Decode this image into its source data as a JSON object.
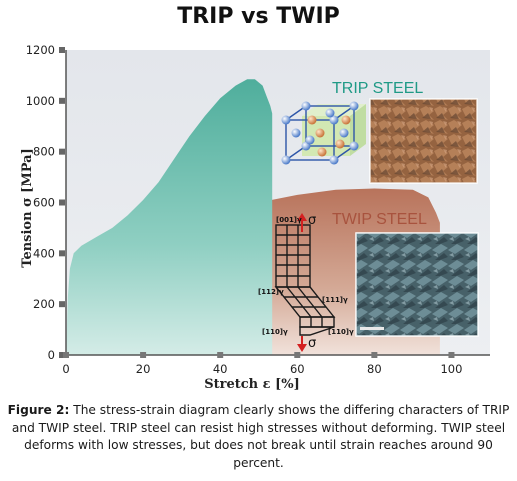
{
  "page": {
    "title": "TRIP vs TWIP",
    "caption": {
      "label": "Figure 2:",
      "text": " The stress-strain diagram clearly shows the differing characters of TRIP and TWIP steel. TRIP steel can resist high stresses without deforming. TWIP steel deforms with low stresses, but does not break until strain reaches around 90 percent."
    }
  },
  "chart_data": {
    "type": "area",
    "title": "",
    "xlabel": "Stretch ε [%]",
    "ylabel": "Tension σ [MPa]",
    "xlim": [
      0,
      110
    ],
    "ylim": [
      0,
      1200
    ],
    "xticks": [
      0,
      20,
      40,
      60,
      80,
      100
    ],
    "yticks": [
      0,
      200,
      400,
      600,
      800,
      1000,
      1200
    ],
    "grid": false,
    "legend": "none",
    "series": [
      {
        "name": "TRIP STEEL",
        "color": "#5fb5a4",
        "label_color": "#1f9a86",
        "x": [
          0,
          0.5,
          1,
          2,
          4,
          8,
          12,
          16,
          20,
          24,
          28,
          32,
          36,
          40,
          44,
          47,
          49,
          51,
          52,
          53,
          53.5
        ],
        "y": [
          0,
          230,
          340,
          400,
          430,
          465,
          500,
          550,
          610,
          680,
          770,
          860,
          940,
          1010,
          1060,
          1085,
          1085,
          1060,
          1020,
          980,
          950
        ]
      },
      {
        "name": "TWIP STEEL",
        "color": "#c0826a",
        "label_color": "#a8533e",
        "x": [
          0,
          0.5,
          1,
          2,
          5,
          10,
          20,
          30,
          40,
          50,
          60,
          70,
          80,
          90,
          94,
          96,
          97
        ],
        "y": [
          0,
          150,
          200,
          240,
          300,
          350,
          420,
          490,
          550,
          600,
          630,
          650,
          655,
          650,
          620,
          560,
          520
        ]
      }
    ],
    "annotations": {
      "crystal_axis_labels": [
        "[001]γ",
        "σ",
        "[112]γ",
        "[111]γ",
        "[110]γ",
        "[110]γ",
        "σ"
      ]
    }
  }
}
